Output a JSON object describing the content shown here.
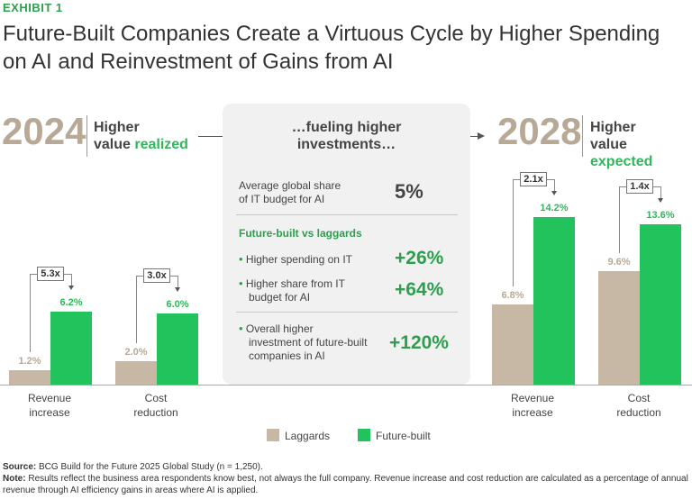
{
  "exhibit": "EXHIBIT 1",
  "title": "Future-Built Companies Create a Virtuous Cycle by Higher Spending on AI and Reinvestment of Gains from AI",
  "left_header": {
    "year": "2024",
    "label_line1": "Higher",
    "label_line2_a": "value ",
    "label_line2_b": "realized"
  },
  "right_header": {
    "year": "2028",
    "label_line1": "Higher",
    "label_line2_a": "value ",
    "label_line2_b": "expected"
  },
  "middle": {
    "heading_line1": "…fueling higher",
    "heading_line2": "investments…",
    "avg_label_line1": "Average global share",
    "avg_label_line2": "of IT budget for AI",
    "avg_value": "5%",
    "subhead": "Future-built vs laggards",
    "items": [
      {
        "line1": "Higher spending on IT",
        "line2": "",
        "line3": "",
        "value": "+26%"
      },
      {
        "line1": "Higher share from IT",
        "line2": "budget for AI",
        "line3": "",
        "value": "+64%"
      },
      {
        "line1": "Overall higher",
        "line2": "investment of future-built",
        "line3": "companies in AI",
        "value": "+120%"
      }
    ]
  },
  "legend": {
    "laggards": "Laggards",
    "future_built": "Future-built"
  },
  "colors": {
    "laggards": "#c7b8a6",
    "future_built": "#22c35c",
    "accent": "#2eb75b"
  },
  "chart_data": [
    {
      "type": "bar",
      "title": "2024 Higher value realized",
      "categories": [
        "Revenue increase",
        "Cost reduction"
      ],
      "series": [
        {
          "name": "Laggards",
          "values": [
            1.2,
            2.0
          ],
          "labels": [
            "1.2%",
            "2.0%"
          ]
        },
        {
          "name": "Future-built",
          "values": [
            6.2,
            6.0
          ],
          "labels": [
            "6.2%",
            "6.0%"
          ]
        }
      ],
      "multipliers": [
        "5.3x",
        "3.0x"
      ],
      "ylim": [
        0,
        16
      ]
    },
    {
      "type": "bar",
      "title": "2028 Higher value expected",
      "categories": [
        "Revenue increase",
        "Cost reduction"
      ],
      "series": [
        {
          "name": "Laggards",
          "values": [
            6.8,
            9.6
          ],
          "labels": [
            "6.8%",
            "9.6%"
          ]
        },
        {
          "name": "Future-built",
          "values": [
            14.2,
            13.6
          ],
          "labels": [
            "14.2%",
            "13.6%"
          ]
        }
      ],
      "multipliers": [
        "2.1x",
        "1.4x"
      ],
      "ylim": [
        0,
        16
      ]
    }
  ],
  "cat_labels": {
    "rev_line1": "Revenue",
    "rev_line2": "increase",
    "cost_line1": "Cost",
    "cost_line2": "reduction"
  },
  "footnote": {
    "source_label": "Source:",
    "source_text": " BCG Build for the Future 2025 Global Study (n = 1,250).",
    "note_label": "Note:",
    "note_text": " Results reflect the business area respondents know best, not always the full company. Revenue increase and cost reduction are calculated as a percentage of annual revenue through AI efficiency gains in areas where AI is applied."
  }
}
